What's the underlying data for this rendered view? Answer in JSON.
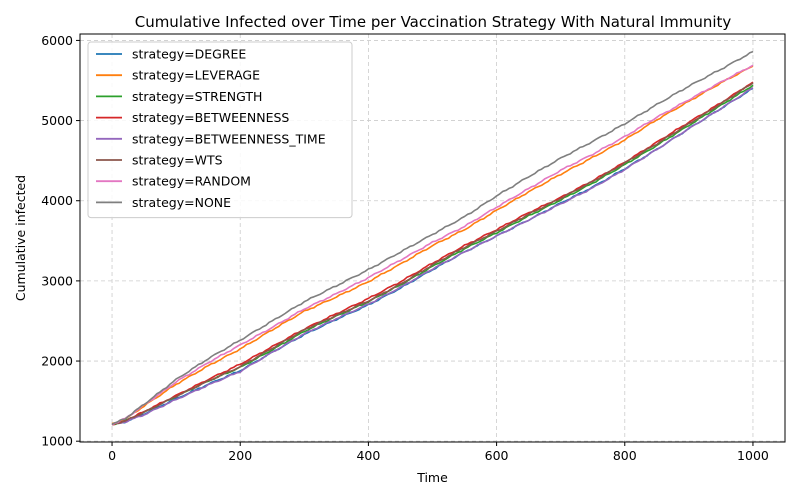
{
  "chart_data": {
    "type": "line",
    "title": "Cumulative Infected over Time per Vaccination Strategy With Natural Immunity",
    "xlabel": "Time",
    "ylabel": "Cumulative infected",
    "xlim": [
      -50,
      1050
    ],
    "ylim": [
      990,
      6080
    ],
    "xticks": [
      0,
      200,
      400,
      600,
      800,
      1000
    ],
    "yticks": [
      1000,
      2000,
      3000,
      4000,
      5000,
      6000
    ],
    "grid": true,
    "legend_position": "top-left",
    "x": [
      0,
      20,
      50,
      100,
      150,
      200,
      250,
      300,
      350,
      400,
      450,
      500,
      550,
      600,
      650,
      700,
      750,
      800,
      850,
      900,
      950,
      1000
    ],
    "series": [
      {
        "name": "strategy=DEGREE",
        "color": "#1f77b4",
        "values": [
          1210,
          1240,
          1340,
          1530,
          1710,
          1880,
          2110,
          2330,
          2520,
          2700,
          2910,
          3140,
          3360,
          3560,
          3760,
          3970,
          4170,
          4400,
          4640,
          4900,
          5150,
          5400
        ]
      },
      {
        "name": "strategy=LEVERAGE",
        "color": "#ff7f0e",
        "values": [
          1210,
          1270,
          1440,
          1710,
          1940,
          2150,
          2390,
          2620,
          2800,
          2990,
          3210,
          3440,
          3640,
          3880,
          4110,
          4330,
          4540,
          4760,
          5010,
          5240,
          5470,
          5680
        ]
      },
      {
        "name": "strategy=STRENGTH",
        "color": "#2ca02c",
        "values": [
          1210,
          1250,
          1360,
          1560,
          1750,
          1920,
          2140,
          2370,
          2560,
          2740,
          2950,
          3180,
          3400,
          3600,
          3810,
          4010,
          4220,
          4450,
          4690,
          4940,
          5190,
          5440
        ]
      },
      {
        "name": "strategy=BETWEENNESS",
        "color": "#d62728",
        "values": [
          1210,
          1250,
          1370,
          1570,
          1770,
          1960,
          2180,
          2400,
          2590,
          2780,
          2990,
          3220,
          3440,
          3640,
          3850,
          4040,
          4250,
          4480,
          4730,
          4980,
          5220,
          5480
        ]
      },
      {
        "name": "strategy=BETWEENNESS_TIME",
        "color": "#9467bd",
        "values": [
          1210,
          1240,
          1330,
          1520,
          1700,
          1870,
          2110,
          2340,
          2530,
          2710,
          2920,
          3150,
          3360,
          3560,
          3760,
          3960,
          4160,
          4390,
          4640,
          4900,
          5150,
          5410
        ]
      },
      {
        "name": "strategy=WTS",
        "color": "#8c564b",
        "values": [
          1210,
          1250,
          1360,
          1560,
          1750,
          1930,
          2160,
          2390,
          2570,
          2750,
          2960,
          3200,
          3420,
          3620,
          3830,
          4030,
          4240,
          4470,
          4710,
          4960,
          5210,
          5470
        ]
      },
      {
        "name": "strategy=RANDOM",
        "color": "#e377c2",
        "values": [
          1210,
          1280,
          1450,
          1740,
          1980,
          2200,
          2420,
          2650,
          2840,
          3040,
          3260,
          3480,
          3680,
          3920,
          4150,
          4380,
          4580,
          4800,
          5040,
          5260,
          5480,
          5690
        ]
      },
      {
        "name": "strategy=NONE",
        "color": "#7f7f7f",
        "values": [
          1210,
          1280,
          1460,
          1770,
          2030,
          2260,
          2500,
          2740,
          2940,
          3140,
          3360,
          3580,
          3800,
          4060,
          4300,
          4530,
          4740,
          4960,
          5200,
          5430,
          5640,
          5860
        ]
      }
    ]
  }
}
